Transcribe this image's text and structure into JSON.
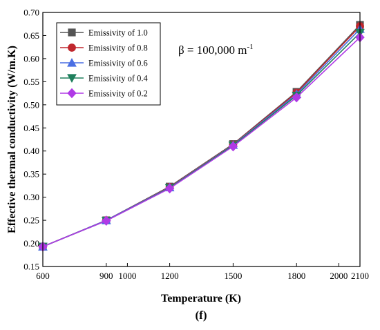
{
  "chart_data": {
    "type": "line",
    "xlabel": "Temperature (K)",
    "ylabel": "Effective thermal conductivity (W/m.K)",
    "panel_label": "(f)",
    "annotation": {
      "text": "β = 100,000 m",
      "superscript": "-1"
    },
    "xlim": [
      600,
      2100
    ],
    "ylim": [
      0.15,
      0.7
    ],
    "x_ticks": [
      600,
      900,
      1000,
      1200,
      1500,
      1800,
      2000,
      2100
    ],
    "y_ticks": [
      0.15,
      0.2,
      0.25,
      0.3,
      0.35,
      0.4,
      0.45,
      0.5,
      0.55,
      0.6,
      0.65,
      0.7
    ],
    "grid": false,
    "legend_position": "top-left",
    "x": [
      600,
      900,
      1200,
      1500,
      1800,
      2100
    ],
    "series": [
      {
        "name": "Emissivity of 1.0",
        "color": "#555555",
        "marker": "square",
        "values": [
          0.193,
          0.25,
          0.323,
          0.415,
          0.528,
          0.673
        ]
      },
      {
        "name": "Emissivity of 0.8",
        "color": "#c0272d",
        "marker": "circle",
        "values": [
          0.193,
          0.25,
          0.322,
          0.414,
          0.526,
          0.67
        ]
      },
      {
        "name": "Emissivity of 0.6",
        "color": "#4a6fe3",
        "marker": "triangle-up",
        "values": [
          0.193,
          0.25,
          0.321,
          0.413,
          0.523,
          0.664
        ]
      },
      {
        "name": "Emissivity of 0.4",
        "color": "#1f7f5c",
        "marker": "triangle-down",
        "values": [
          0.193,
          0.249,
          0.32,
          0.412,
          0.52,
          0.656
        ]
      },
      {
        "name": "Emissivity of 0.2",
        "color": "#b03ae6",
        "marker": "diamond",
        "values": [
          0.193,
          0.249,
          0.319,
          0.41,
          0.516,
          0.646
        ]
      }
    ]
  }
}
